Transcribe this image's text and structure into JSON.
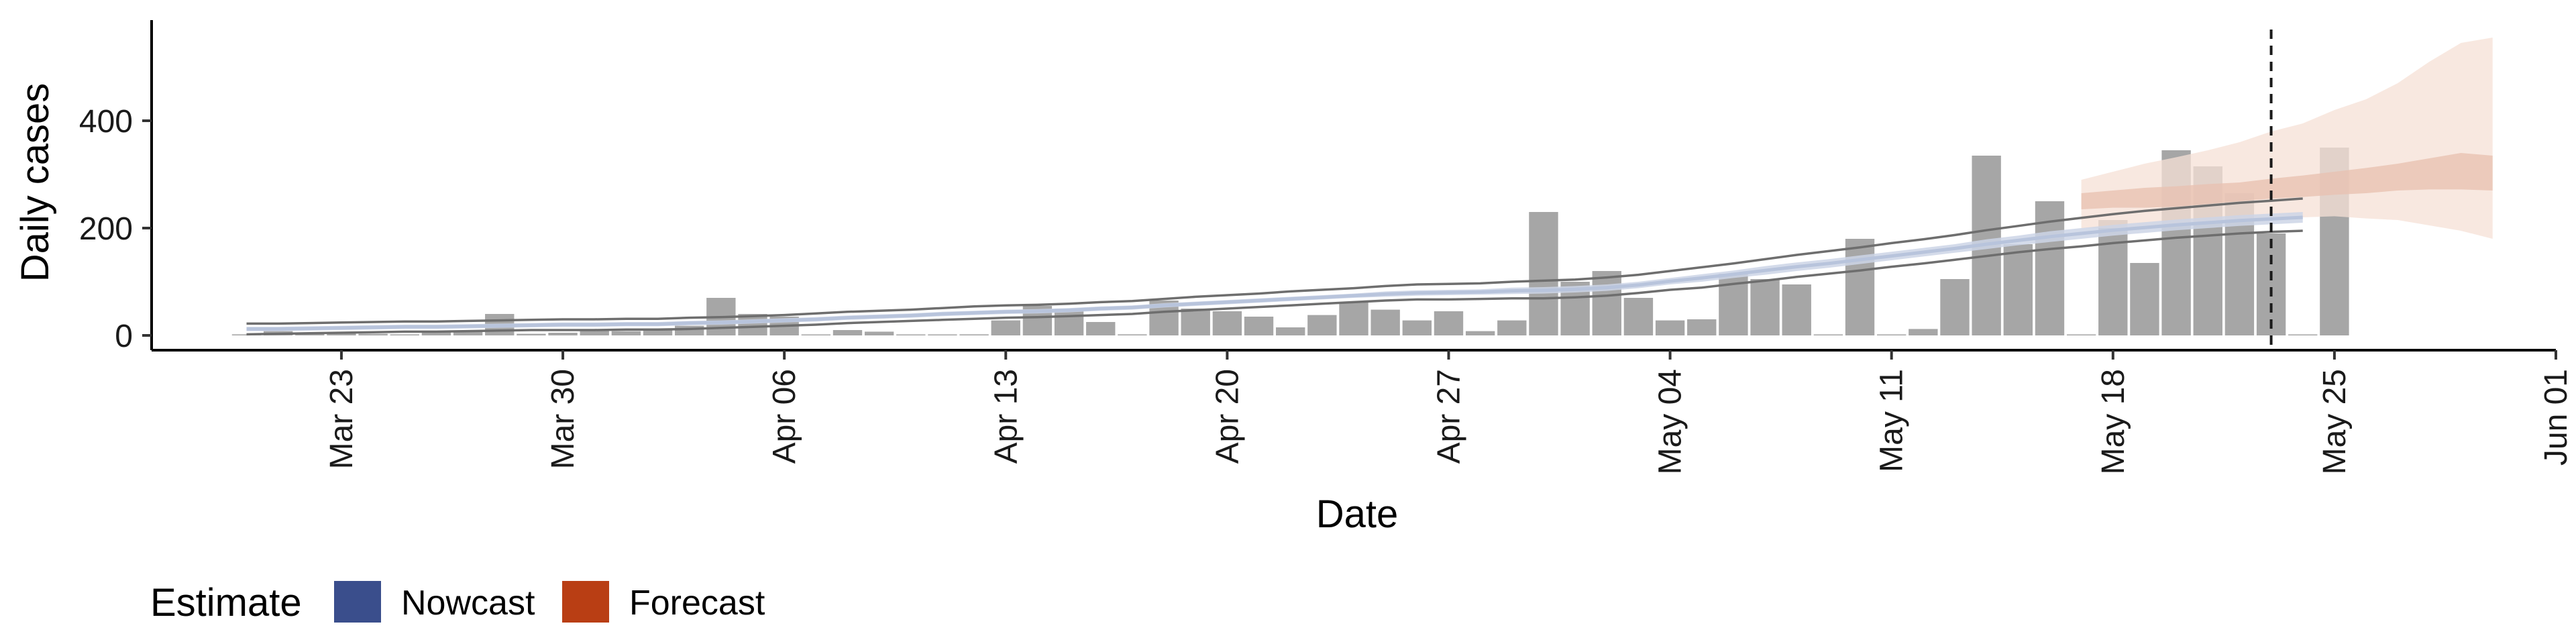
{
  "chart_data": {
    "type": "bar",
    "xlabel": "Date",
    "ylabel": "Daily cases",
    "xlim": [
      "2020-03-17",
      "2020-06-01"
    ],
    "ylim": [
      -25,
      580
    ],
    "x_ticks": [
      "Mar 23",
      "Mar 30",
      "Apr 06",
      "Apr 13",
      "Apr 20",
      "Apr 27",
      "May 04",
      "May 11",
      "May 18",
      "May 25",
      "Jun 01"
    ],
    "x_tick_dates": [
      "2020-03-23",
      "2020-03-30",
      "2020-04-06",
      "2020-04-13",
      "2020-04-20",
      "2020-04-27",
      "2020-05-04",
      "2020-05-11",
      "2020-05-18",
      "2020-05-25",
      "2020-06-01"
    ],
    "y_ticks": [
      0,
      200,
      400
    ],
    "cutoff_date": "2020-05-23",
    "grid": false,
    "legend_position": "bottom-left",
    "bars": {
      "start_date": "2020-03-20",
      "values": [
        2,
        8,
        5,
        4,
        3,
        2,
        6,
        9,
        40,
        3,
        5,
        10,
        8,
        12,
        18,
        70,
        40,
        35,
        0,
        10,
        7,
        0,
        0,
        2,
        28,
        55,
        50,
        25,
        2,
        65,
        50,
        45,
        35,
        15,
        38,
        62,
        48,
        28,
        45,
        8,
        28,
        230,
        100,
        120,
        70,
        28,
        30,
        115,
        105,
        95,
        0,
        180,
        0,
        12,
        105,
        335,
        170,
        250,
        0,
        215,
        135,
        345,
        315,
        265,
        190,
        0,
        350
      ],
      "color": "#a6a6a6"
    },
    "nowcast": {
      "start_date": "2020-03-20",
      "median": [
        12,
        12,
        13,
        14,
        15,
        16,
        16,
        17,
        18,
        19,
        20,
        20,
        21,
        21,
        23,
        24,
        26,
        28,
        30,
        33,
        35,
        37,
        40,
        42,
        44,
        45,
        47,
        50,
        52,
        56,
        59,
        62,
        65,
        68,
        71,
        74,
        77,
        79,
        80,
        81,
        83,
        84,
        86,
        89,
        94,
        101,
        107,
        114,
        121,
        128,
        134,
        141,
        148,
        155,
        162,
        170,
        177,
        184,
        190,
        196,
        201,
        206,
        210,
        214,
        217,
        220
      ],
      "inner_lower": [
        8,
        8,
        9,
        10,
        11,
        12,
        12,
        13,
        14,
        15,
        16,
        16,
        17,
        17,
        19,
        20,
        22,
        24,
        26,
        29,
        31,
        33,
        36,
        38,
        40,
        41,
        43,
        46,
        48,
        52,
        55,
        58,
        61,
        64,
        67,
        70,
        72,
        74,
        75,
        76,
        77,
        78,
        80,
        83,
        88,
        95,
        100,
        107,
        113,
        120,
        126,
        133,
        140,
        147,
        154,
        161,
        168,
        174,
        180,
        186,
        191,
        196,
        200,
        204,
        207,
        210
      ],
      "inner_upper": [
        16,
        16,
        17,
        18,
        19,
        20,
        20,
        21,
        22,
        23,
        24,
        24,
        25,
        25,
        27,
        28,
        30,
        32,
        34,
        37,
        39,
        41,
        44,
        46,
        48,
        49,
        51,
        54,
        56,
        60,
        63,
        66,
        69,
        72,
        75,
        78,
        82,
        84,
        85,
        86,
        89,
        90,
        92,
        95,
        100,
        107,
        114,
        121,
        129,
        136,
        142,
        149,
        156,
        163,
        170,
        179,
        186,
        194,
        200,
        206,
        211,
        216,
        220,
        224,
        227,
        230
      ],
      "outer_lower": [
        2,
        3,
        4,
        5,
        6,
        7,
        7,
        8,
        9,
        10,
        10,
        10,
        11,
        11,
        12,
        14,
        16,
        18,
        20,
        23,
        25,
        27,
        29,
        31,
        33,
        34,
        36,
        38,
        40,
        44,
        47,
        50,
        53,
        56,
        59,
        62,
        65,
        67,
        67,
        68,
        69,
        69,
        71,
        74,
        79,
        85,
        89,
        96,
        102,
        109,
        115,
        121,
        128,
        134,
        141,
        148,
        155,
        161,
        166,
        172,
        177,
        182,
        186,
        190,
        193,
        195
      ],
      "outer_upper": [
        22,
        22,
        23,
        24,
        25,
        26,
        26,
        27,
        28,
        29,
        30,
        30,
        31,
        31,
        33,
        34,
        36,
        38,
        41,
        44,
        46,
        48,
        51,
        54,
        56,
        57,
        59,
        62,
        64,
        68,
        72,
        75,
        78,
        82,
        85,
        88,
        92,
        95,
        96,
        97,
        100,
        102,
        104,
        108,
        113,
        120,
        127,
        134,
        142,
        150,
        157,
        164,
        172,
        179,
        187,
        196,
        204,
        212,
        219,
        226,
        232,
        237,
        242,
        247,
        251,
        255
      ],
      "band_color": "#cdd5e6",
      "median_color": "#b8c4dc",
      "outer_line_color": "#6e6e6e"
    },
    "forecast": {
      "start_date": "2020-05-17",
      "inner_lower": [
        235,
        238,
        238,
        240,
        245,
        250,
        255,
        258,
        262,
        265,
        270,
        272,
        272,
        270
      ],
      "inner_upper": [
        265,
        270,
        275,
        278,
        282,
        285,
        292,
        298,
        305,
        312,
        320,
        330,
        340,
        335
      ],
      "outer_lower": [
        200,
        200,
        198,
        205,
        210,
        215,
        218,
        220,
        222,
        218,
        215,
        205,
        195,
        180
      ],
      "outer_upper": [
        290,
        305,
        320,
        332,
        345,
        360,
        380,
        395,
        420,
        440,
        470,
        510,
        545,
        555
      ],
      "inner_color": "#e8c2b2",
      "outer_color": "#f6e0d6"
    },
    "legend": {
      "title": "Estimate",
      "items": [
        {
          "label": "Nowcast",
          "color": "#3a4e8c"
        },
        {
          "label": "Forecast",
          "color": "#b93e14"
        }
      ]
    }
  }
}
